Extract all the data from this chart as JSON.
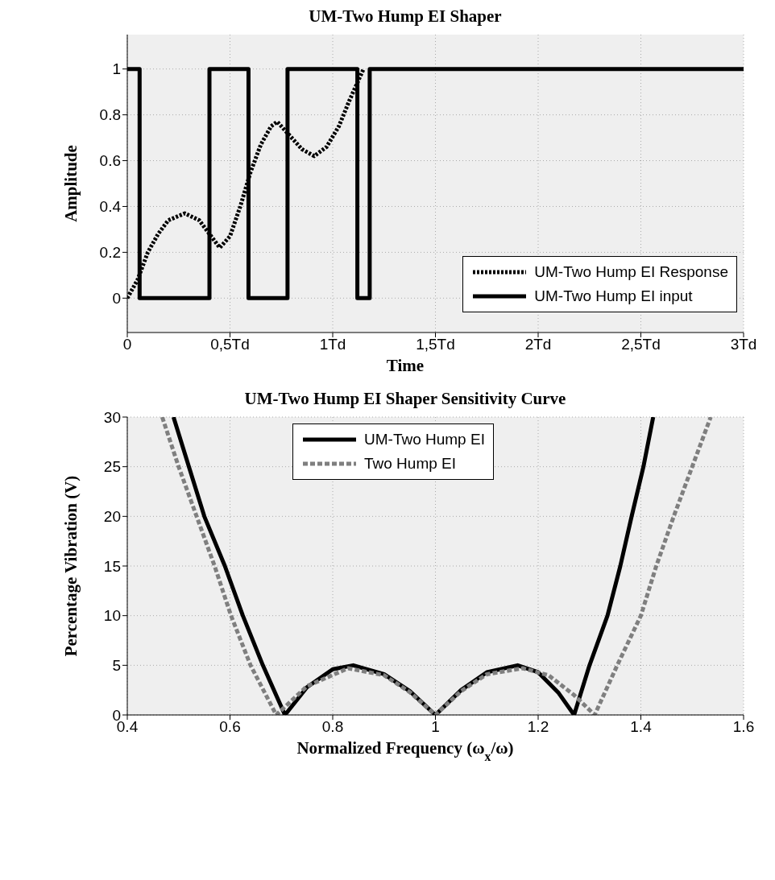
{
  "chart_data": [
    {
      "type": "line",
      "title": "UM-Two Hump EI Shaper",
      "xlabel": "Time",
      "ylabel": "Amplitude",
      "xlim": [
        0,
        3
      ],
      "ylim": [
        -0.15,
        1.15
      ],
      "xticks": [
        0,
        {
          "value": 0.5,
          "label": "0,5Td"
        },
        {
          "value": 1,
          "label": "1Td"
        },
        {
          "value": 1.5,
          "label": "1,5Td"
        },
        {
          "value": 2,
          "label": "2Td"
        },
        {
          "value": 2.5,
          "label": "2,5Td"
        },
        {
          "value": 3,
          "label": "3Td"
        }
      ],
      "yticks": [
        0,
        0.2,
        0.4,
        0.6,
        0.8,
        1
      ],
      "grid": true,
      "legend": "bottom right",
      "series": [
        {
          "name": "UM-Two Hump EI Response",
          "color": "#000000",
          "line_style": "dotted",
          "x": [
            0,
            0.05,
            0.1,
            0.15,
            0.2,
            0.28,
            0.35,
            0.4,
            0.45,
            0.5,
            0.55,
            0.6,
            0.65,
            0.7,
            0.73,
            0.78,
            0.85,
            0.91,
            0.97,
            1.03,
            1.08,
            1.15
          ],
          "values": [
            0,
            0.08,
            0.2,
            0.28,
            0.34,
            0.37,
            0.34,
            0.28,
            0.22,
            0.27,
            0.4,
            0.55,
            0.67,
            0.75,
            0.77,
            0.72,
            0.65,
            0.62,
            0.66,
            0.75,
            0.86,
            1
          ]
        },
        {
          "name": "UM-Two Hump EI input",
          "color": "#000000",
          "line_style": "solid",
          "x": [
            0,
            0.06,
            0.06,
            0.4,
            0.4,
            0.59,
            0.59,
            0.78,
            0.78,
            1.12,
            1.12,
            1.18,
            1.18,
            3
          ],
          "values": [
            1,
            1,
            0,
            0,
            1,
            1,
            0,
            0,
            1,
            1,
            0,
            0,
            1,
            1
          ]
        }
      ]
    },
    {
      "type": "line",
      "title": "UM-Two Hump EI Shaper Sensitivity Curve",
      "xlabel": "Normalized Frequency (ω$_{x}$/ω)",
      "ylabel": "Percentage Vibration (V)",
      "xlim": [
        0.4,
        1.6
      ],
      "ylim": [
        0,
        30
      ],
      "xticks": [
        0.4,
        0.6,
        0.8,
        1,
        1.2,
        1.4,
        1.6
      ],
      "yticks": [
        0,
        5,
        10,
        15,
        20,
        25,
        30
      ],
      "grid": true,
      "legend": "top",
      "series": [
        {
          "name": "UM-Two Hump EI",
          "color": "#000000",
          "line_style": "solid",
          "x": [
            0.49,
            0.52,
            0.55,
            0.59,
            0.625,
            0.664,
            0.707,
            0.75,
            0.8,
            0.84,
            0.9,
            0.95,
            1.0,
            1.05,
            1.1,
            1.16,
            1.2,
            1.24,
            1.27,
            1.3,
            1.335,
            1.36,
            1.382,
            1.405,
            1.424
          ],
          "values": [
            30,
            25,
            20,
            15,
            10,
            5,
            0,
            2.8,
            4.6,
            5,
            4.1,
            2.4,
            0,
            2.5,
            4.3,
            5,
            4.3,
            2.2,
            0,
            5,
            10,
            15,
            20,
            25,
            30
          ]
        },
        {
          "name": "Two Hump EI",
          "color": "#7f7f7f",
          "line_style": "dashed",
          "x": [
            0.468,
            0.5,
            0.535,
            0.57,
            0.602,
            0.64,
            0.69,
            0.75,
            0.83,
            0.9,
            0.95,
            1.0,
            1.05,
            1.1,
            1.17,
            1.22,
            1.27,
            1.31,
            1.354,
            1.4,
            1.43,
            1.464,
            1.5,
            1.536
          ],
          "values": [
            30,
            25,
            20,
            15,
            10,
            5,
            0,
            2.9,
            4.7,
            4,
            2.3,
            0,
            2.4,
            4.1,
            4.7,
            4,
            2,
            0,
            5,
            10,
            15,
            20,
            25,
            30
          ]
        }
      ]
    }
  ]
}
